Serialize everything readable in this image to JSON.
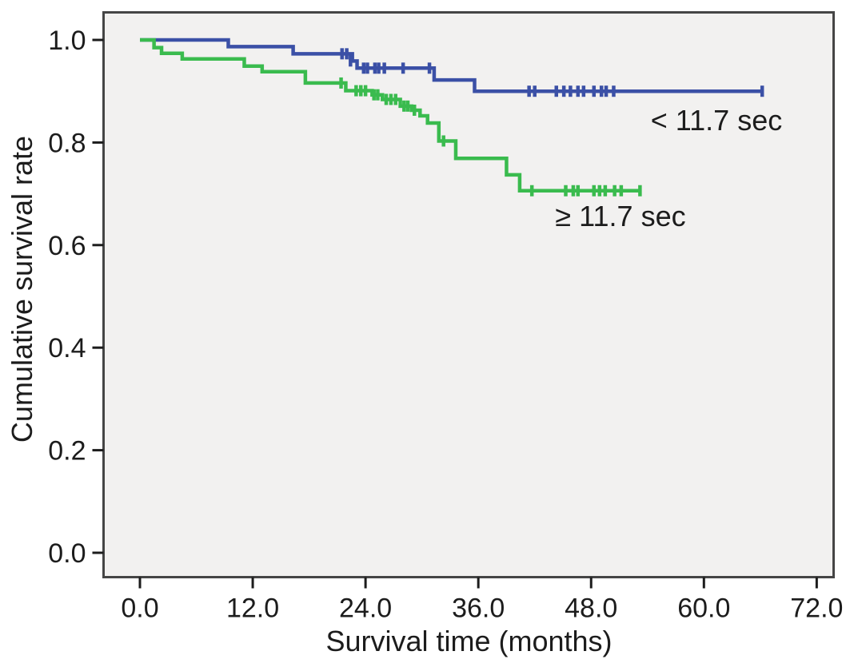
{
  "figure": {
    "background_color": "#ffffff",
    "plot_background_color": "#f2f1f0",
    "frame_color": "#454545",
    "tick_color": "#1c1c1c",
    "text_color": "#1c1c1c"
  },
  "chart_data": {
    "type": "line",
    "subtype": "kaplan-meier-step-survival",
    "title": "",
    "xlabel": "Survival time (months)",
    "ylabel": "Cumulative survival rate",
    "xlim": [
      0,
      72
    ],
    "ylim": [
      0.0,
      1.0
    ],
    "x_tick_values": [
      0,
      12,
      24,
      36,
      48,
      60,
      72
    ],
    "x_tick_labels": [
      "0.0",
      "12.0",
      "24.0",
      "36.0",
      "48.0",
      "60.0",
      "72.0"
    ],
    "y_tick_values": [
      0.0,
      0.2,
      0.4,
      0.6,
      0.8,
      1.0
    ],
    "y_tick_labels": [
      "0.0",
      "0.2",
      "0.4",
      "0.6",
      "0.8",
      "1.0"
    ],
    "grid": false,
    "legend_position": "annotations-on-plot",
    "series": [
      {
        "name": "< 11.7 sec",
        "color": "#3b50a6",
        "final_survival": 0.9,
        "steps": [
          [
            0,
            1.0
          ],
          [
            9.4,
            0.987
          ],
          [
            16.3,
            0.973
          ],
          [
            22.6,
            0.959
          ],
          [
            23.1,
            0.945
          ],
          [
            31.3,
            0.922
          ],
          [
            35.6,
            0.9
          ],
          [
            66.2,
            0.9
          ]
        ],
        "censor_marks": [
          [
            21.5,
            0.973
          ],
          [
            22.0,
            0.973
          ],
          [
            22.4,
            0.959
          ],
          [
            23.8,
            0.945
          ],
          [
            24.2,
            0.945
          ],
          [
            25.0,
            0.945
          ],
          [
            25.4,
            0.945
          ],
          [
            26.0,
            0.945
          ],
          [
            28.0,
            0.945
          ],
          [
            30.8,
            0.945
          ],
          [
            41.4,
            0.9
          ],
          [
            42.0,
            0.9
          ],
          [
            44.3,
            0.9
          ],
          [
            45.1,
            0.9
          ],
          [
            45.8,
            0.9
          ],
          [
            46.6,
            0.9
          ],
          [
            47.2,
            0.9
          ],
          [
            48.3,
            0.9
          ],
          [
            49.1,
            0.9
          ],
          [
            49.6,
            0.9
          ],
          [
            50.4,
            0.9
          ],
          [
            66.2,
            0.9
          ]
        ]
      },
      {
        "name": "≥ 11.7 sec",
        "color": "#3abb4e",
        "final_survival": 0.71,
        "steps": [
          [
            0,
            1.0
          ],
          [
            1.5,
            0.985
          ],
          [
            2.3,
            0.974
          ],
          [
            4.5,
            0.963
          ],
          [
            11.1,
            0.949
          ],
          [
            13.0,
            0.938
          ],
          [
            17.6,
            0.916
          ],
          [
            21.9,
            0.901
          ],
          [
            24.7,
            0.893
          ],
          [
            25.8,
            0.884
          ],
          [
            27.7,
            0.871
          ],
          [
            28.9,
            0.863
          ],
          [
            29.8,
            0.852
          ],
          [
            30.6,
            0.838
          ],
          [
            31.8,
            0.803
          ],
          [
            33.6,
            0.769
          ],
          [
            39.0,
            0.737
          ],
          [
            40.4,
            0.706
          ],
          [
            53.2,
            0.706
          ]
        ],
        "censor_marks": [
          [
            21.4,
            0.916
          ],
          [
            23.0,
            0.901
          ],
          [
            23.5,
            0.901
          ],
          [
            24.0,
            0.901
          ],
          [
            24.9,
            0.893
          ],
          [
            25.3,
            0.893
          ],
          [
            26.2,
            0.884
          ],
          [
            26.7,
            0.884
          ],
          [
            27.2,
            0.884
          ],
          [
            28.1,
            0.871
          ],
          [
            28.5,
            0.871
          ],
          [
            29.2,
            0.863
          ],
          [
            32.3,
            0.803
          ],
          [
            41.7,
            0.706
          ],
          [
            45.3,
            0.706
          ],
          [
            46.1,
            0.706
          ],
          [
            46.6,
            0.706
          ],
          [
            48.3,
            0.706
          ],
          [
            48.9,
            0.706
          ],
          [
            49.5,
            0.706
          ],
          [
            50.5,
            0.706
          ],
          [
            51.2,
            0.706
          ],
          [
            53.2,
            0.706
          ]
        ]
      }
    ]
  }
}
